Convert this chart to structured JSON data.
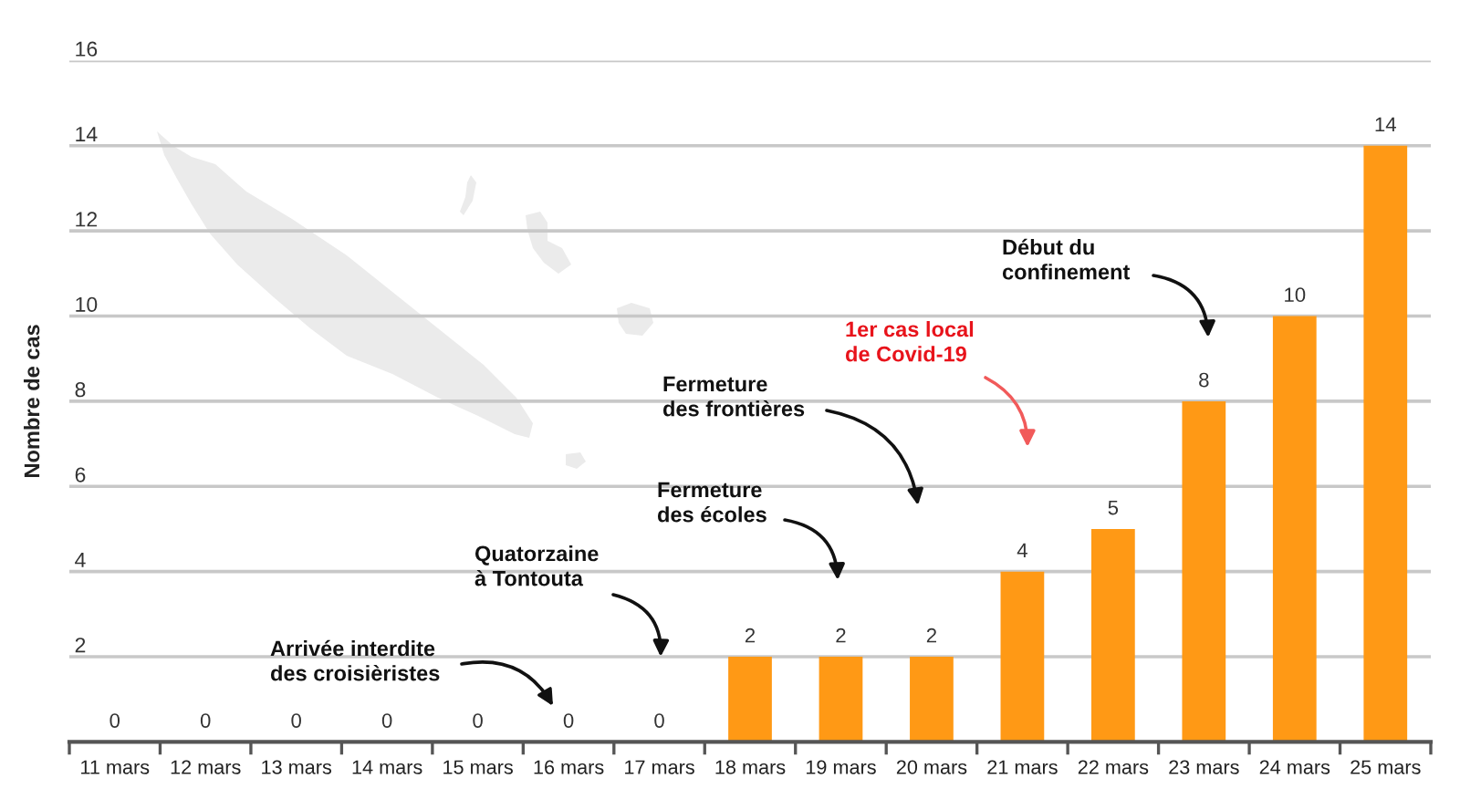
{
  "chart_data": {
    "type": "bar",
    "ylabel": "Nombre de cas",
    "categories": [
      "11 mars",
      "12 mars",
      "13 mars",
      "14 mars",
      "15 mars",
      "16 mars",
      "17 mars",
      "18 mars",
      "19 mars",
      "20 mars",
      "21 mars",
      "22 mars",
      "23 mars",
      "24 mars",
      "25 mars"
    ],
    "values": [
      0,
      0,
      0,
      0,
      0,
      0,
      0,
      2,
      2,
      2,
      4,
      5,
      8,
      10,
      14
    ],
    "color": "#ff9915",
    "ylim": [
      0,
      16
    ],
    "yticks": [
      2,
      4,
      6,
      8,
      10,
      12,
      14,
      16
    ],
    "grid": "y",
    "data_labels": true,
    "annotations": [
      "Arrivée interdite\ndes croisièristes",
      "Quatorzaine\nà Tontouta",
      "Fermeture\ndes écoles",
      "Fermeture\ndes frontières",
      "1er cas local\nde Covid-19",
      "Début du\nconfinement"
    ]
  }
}
